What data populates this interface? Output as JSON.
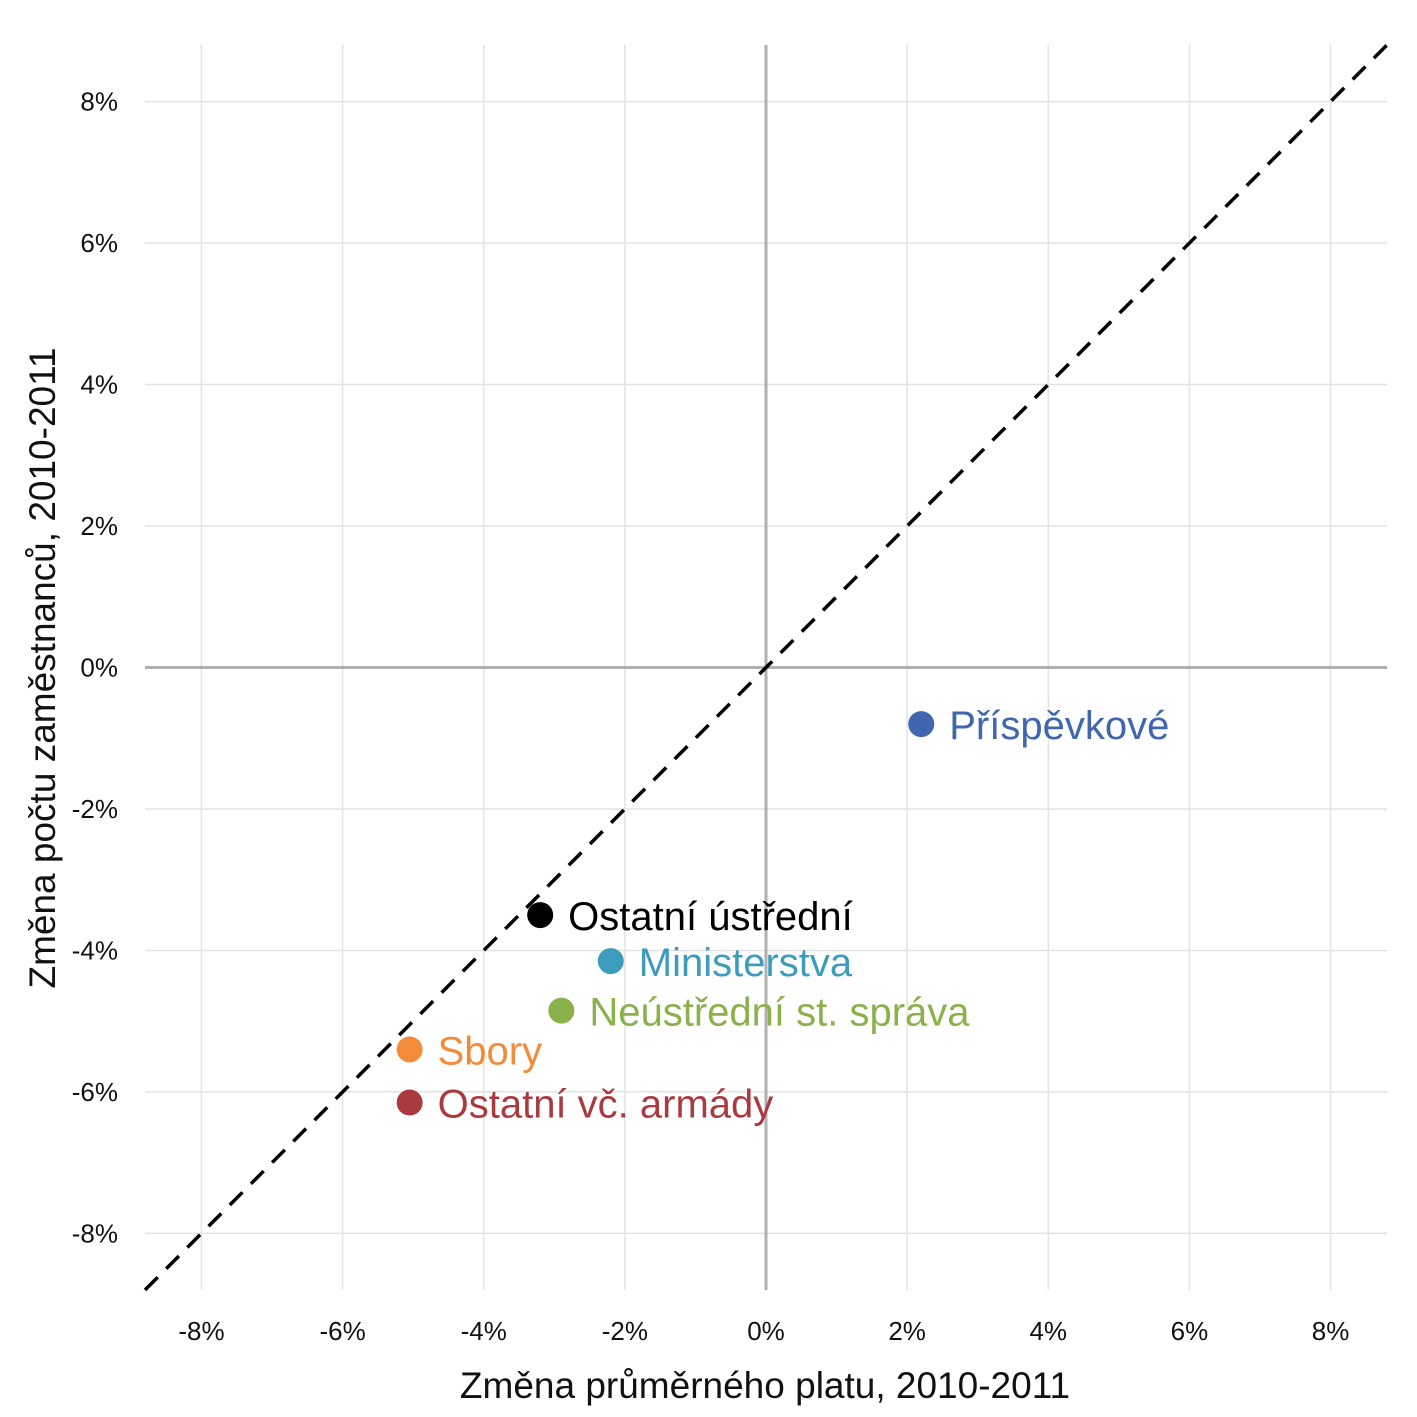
{
  "chart_data": {
    "type": "scatter",
    "title": "",
    "xlabel": "Změna průměrného platu, 2010-2011",
    "ylabel": "Změna počtu zaměstnanců, 2010-2011",
    "xlim": [
      -8.8,
      8.8
    ],
    "ylim": [
      -8.8,
      8.8
    ],
    "grid": true,
    "x_ticks": [
      -8,
      -6,
      -4,
      -2,
      0,
      2,
      4,
      6,
      8
    ],
    "y_ticks": [
      -8,
      -6,
      -4,
      -2,
      0,
      2,
      4,
      6,
      8
    ],
    "x_tick_labels": [
      "-8%",
      "-6%",
      "-4%",
      "-2%",
      "0%",
      "2%",
      "4%",
      "6%",
      "8%"
    ],
    "y_tick_labels": [
      "-8%",
      "-6%",
      "-4%",
      "-2%",
      "0%",
      "2%",
      "4%",
      "6%",
      "8%"
    ],
    "reference_line": "y = x",
    "points": [
      {
        "label": "Příspěvkové",
        "x": 2.2,
        "y": -0.8,
        "color": "#3f66ae"
      },
      {
        "label": "Ostatní ústřední",
        "x": -3.2,
        "y": -3.5,
        "color": "#000000"
      },
      {
        "label": "Ministerstva",
        "x": -2.2,
        "y": -4.15,
        "color": "#3d9bbd"
      },
      {
        "label": "Neústřední st. správa",
        "x": -2.9,
        "y": -4.85,
        "color": "#8ab14a"
      },
      {
        "label": "Sbory",
        "x": -5.05,
        "y": -5.4,
        "color": "#f28c3a"
      },
      {
        "label": "Ostatní vč. armády",
        "x": -5.05,
        "y": -6.15,
        "color": "#ab3a3e"
      }
    ]
  }
}
